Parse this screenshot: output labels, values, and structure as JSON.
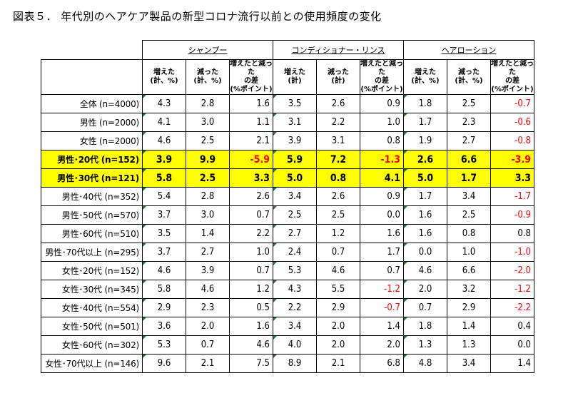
{
  "title": "図表５． 年代別のヘアケア製品の新型コロナ流行以前との使用頻度の変化",
  "groups": [
    "シャンプー",
    "コンディショナー・リンス",
    "ヘアローション"
  ],
  "subheaders": [
    [
      "増えた",
      "(計、%)"
    ],
    [
      "減った",
      "(計、%)"
    ],
    [
      "増えたと減った",
      "の差",
      "(%ポイント)"
    ],
    [
      "増えた",
      "(計)"
    ],
    [
      "減った",
      "(計)"
    ],
    [
      "増えたと減った",
      "の差",
      "(%ポイント)"
    ],
    [
      "増えた",
      "(計、%)"
    ],
    [
      "減った",
      "(計、%)"
    ],
    [
      "増えたと減った",
      "の差",
      "(%ポイント)"
    ]
  ],
  "rows": [
    {
      "label": "全体 (n=4000)",
      "values": [
        "4.3",
        "2.8",
        "1.6",
        "3.5",
        "2.6",
        "0.9",
        "1.8",
        "2.5",
        "-0.7"
      ]
    },
    {
      "label": "男性 (n=2000)",
      "values": [
        "4.1",
        "3.0",
        "1.1",
        "3.1",
        "2.2",
        "1.0",
        "1.7",
        "2.3",
        "-0.6"
      ]
    },
    {
      "label": "女性 (n=2000)",
      "values": [
        "4.6",
        "2.5",
        "2.1",
        "3.9",
        "3.1",
        "0.8",
        "1.9",
        "2.7",
        "-0.8"
      ]
    },
    {
      "label": "男性･20代 (n=152)",
      "values": [
        "3.9",
        "9.9",
        "-5.9",
        "5.9",
        "7.2",
        "-1.3",
        "2.6",
        "6.6",
        "-3.9"
      ],
      "highlight": true
    },
    {
      "label": "男性･30代 (n=121)",
      "values": [
        "5.8",
        "2.5",
        "3.3",
        "5.0",
        "0.8",
        "4.1",
        "5.0",
        "1.7",
        "3.3"
      ],
      "highlight": true
    },
    {
      "label": "男性･40代 (n=352)",
      "values": [
        "5.4",
        "2.8",
        "2.6",
        "3.4",
        "2.6",
        "0.9",
        "1.7",
        "3.4",
        "-1.7"
      ]
    },
    {
      "label": "男性･50代 (n=570)",
      "values": [
        "3.7",
        "3.0",
        "0.7",
        "2.5",
        "2.5",
        "0.0",
        "1.6",
        "2.5",
        "-0.9"
      ]
    },
    {
      "label": "男性･60代 (n=510)",
      "values": [
        "3.5",
        "1.4",
        "2.2",
        "2.7",
        "1.2",
        "1.6",
        "1.6",
        "0.8",
        "0.8"
      ]
    },
    {
      "label": "男性･70代以上 (n=295)",
      "values": [
        "3.7",
        "2.7",
        "1.0",
        "2.4",
        "0.7",
        "1.7",
        "0.0",
        "1.0",
        "-1.0"
      ]
    },
    {
      "label": "女性･20代 (n=152)",
      "values": [
        "4.6",
        "3.9",
        "0.7",
        "5.3",
        "4.6",
        "0.7",
        "4.6",
        "6.6",
        "-2.0"
      ]
    },
    {
      "label": "女性･30代 (n=345)",
      "values": [
        "5.8",
        "4.6",
        "1.2",
        "4.3",
        "5.5",
        "-1.2",
        "2.0",
        "3.2",
        "-1.2"
      ]
    },
    {
      "label": "女性･40代 (n=554)",
      "values": [
        "2.9",
        "2.3",
        "0.5",
        "2.2",
        "2.9",
        "-0.7",
        "0.7",
        "2.9",
        "-2.2"
      ]
    },
    {
      "label": "女性･50代 (n=501)",
      "values": [
        "3.6",
        "2.0",
        "1.6",
        "3.4",
        "2.0",
        "1.4",
        "1.8",
        "1.4",
        "0.4"
      ]
    },
    {
      "label": "女性･60代 (n=302)",
      "values": [
        "5.3",
        "0.7",
        "4.6",
        "4.0",
        "2.0",
        "2.0",
        "1.3",
        "1.3",
        "0.0"
      ]
    },
    {
      "label": "女性･70代以上 (n=146)",
      "values": [
        "9.6",
        "2.1",
        "7.5",
        "8.9",
        "2.1",
        "6.8",
        "4.8",
        "3.4",
        "1.4"
      ]
    }
  ],
  "colors": {
    "highlight": "#ffff00",
    "negative": "#ff0000",
    "marker": "#1b7a3d"
  }
}
